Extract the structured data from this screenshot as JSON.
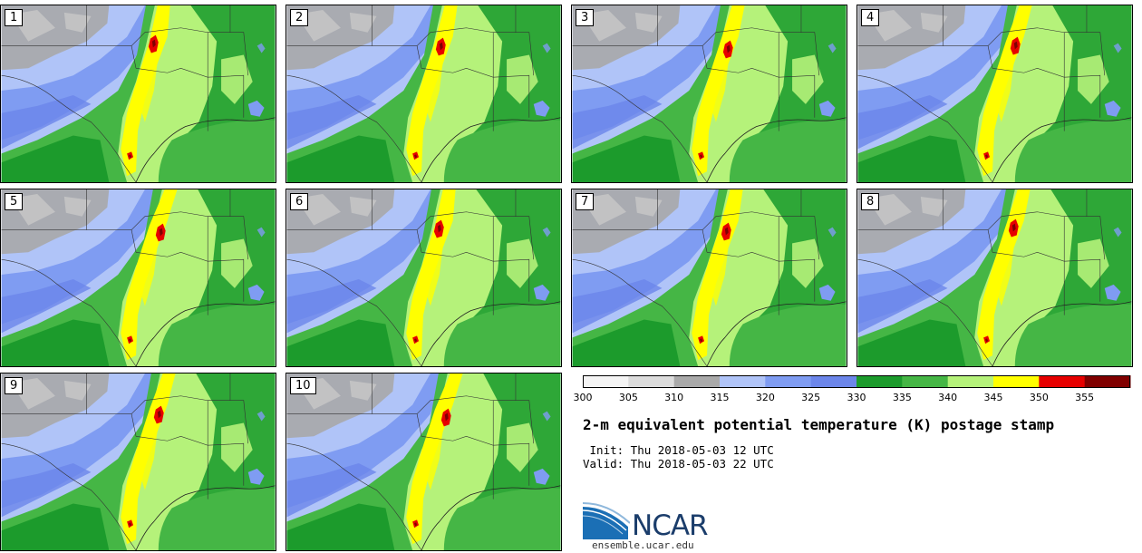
{
  "panels": [
    {
      "label": "1",
      "variant": 0
    },
    {
      "label": "2",
      "variant": 1
    },
    {
      "label": "3",
      "variant": 2
    },
    {
      "label": "4",
      "variant": 3
    },
    {
      "label": "5",
      "variant": 4
    },
    {
      "label": "6",
      "variant": 5
    },
    {
      "label": "7",
      "variant": 6
    },
    {
      "label": "8",
      "variant": 7
    },
    {
      "label": "9",
      "variant": 8
    },
    {
      "label": "10",
      "variant": 9
    }
  ],
  "colorbar": {
    "levels": [
      300,
      305,
      310,
      315,
      320,
      325,
      330,
      335,
      340,
      345,
      350,
      355
    ],
    "colors": [
      "#f4f4f4",
      "#dcdcdc",
      "#a9a9a9",
      "#b0c4f8",
      "#7f9cf2",
      "#6c86ea",
      "#1c9b2c",
      "#45b645",
      "#b5f27a",
      "#ffff00",
      "#e60000",
      "#800000"
    ]
  },
  "title": "2-m equivalent potential temperature (K) postage stamp",
  "init_text": " Init: Thu 2018-05-03 12 UTC",
  "valid_text": "Valid: Thu 2018-05-03 22 UTC",
  "logo_text": "NCAR",
  "site_text": "ensemble.ucar.edu"
}
